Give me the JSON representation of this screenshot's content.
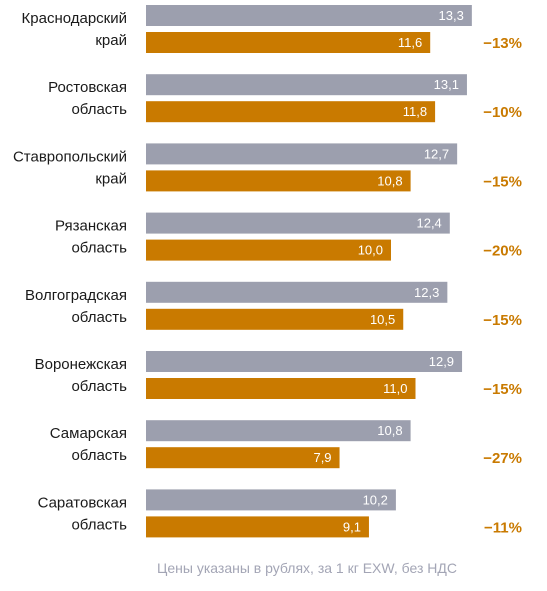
{
  "colors": {
    "series_prev": "#9c9fae",
    "series_curr": "#c97a00",
    "change_text": "#c97a00",
    "label_text": "#1a1a1a",
    "footnote_text": "#a3a5b5"
  },
  "footnote": "Цены указаны в рублях, за 1 кг EXW, без НДС",
  "chart_data": {
    "type": "bar",
    "orientation": "horizontal",
    "categories": [
      [
        "Краснодарский",
        "край"
      ],
      [
        "Ростовская",
        "область"
      ],
      [
        "Ставропольский",
        "край"
      ],
      [
        "Рязанская",
        "область"
      ],
      [
        "Волгоградская",
        "область"
      ],
      [
        "Воронежская",
        "область"
      ],
      [
        "Самарская",
        "область"
      ],
      [
        "Саратовская",
        "область"
      ]
    ],
    "series": [
      {
        "values": [
          13.3,
          13.1,
          12.7,
          12.4,
          12.3,
          12.9,
          10.8,
          10.2
        ],
        "labels": [
          "13,3",
          "13,1",
          "12,7",
          "12,4",
          "12,3",
          "12,9",
          "10,8",
          "10,2"
        ]
      },
      {
        "values": [
          11.6,
          11.8,
          10.8,
          10.0,
          10.5,
          11.0,
          7.9,
          9.1
        ],
        "labels": [
          "11,6",
          "11,8",
          "10,8",
          "10,0",
          "10,5",
          "11,0",
          "7,9",
          "9,1"
        ]
      }
    ],
    "changes": [
      "−13%",
      "−10%",
      "−15%",
      "−20%",
      "−15%",
      "−15%",
      "−27%",
      "−11%"
    ],
    "grid": false,
    "legend": "none"
  }
}
